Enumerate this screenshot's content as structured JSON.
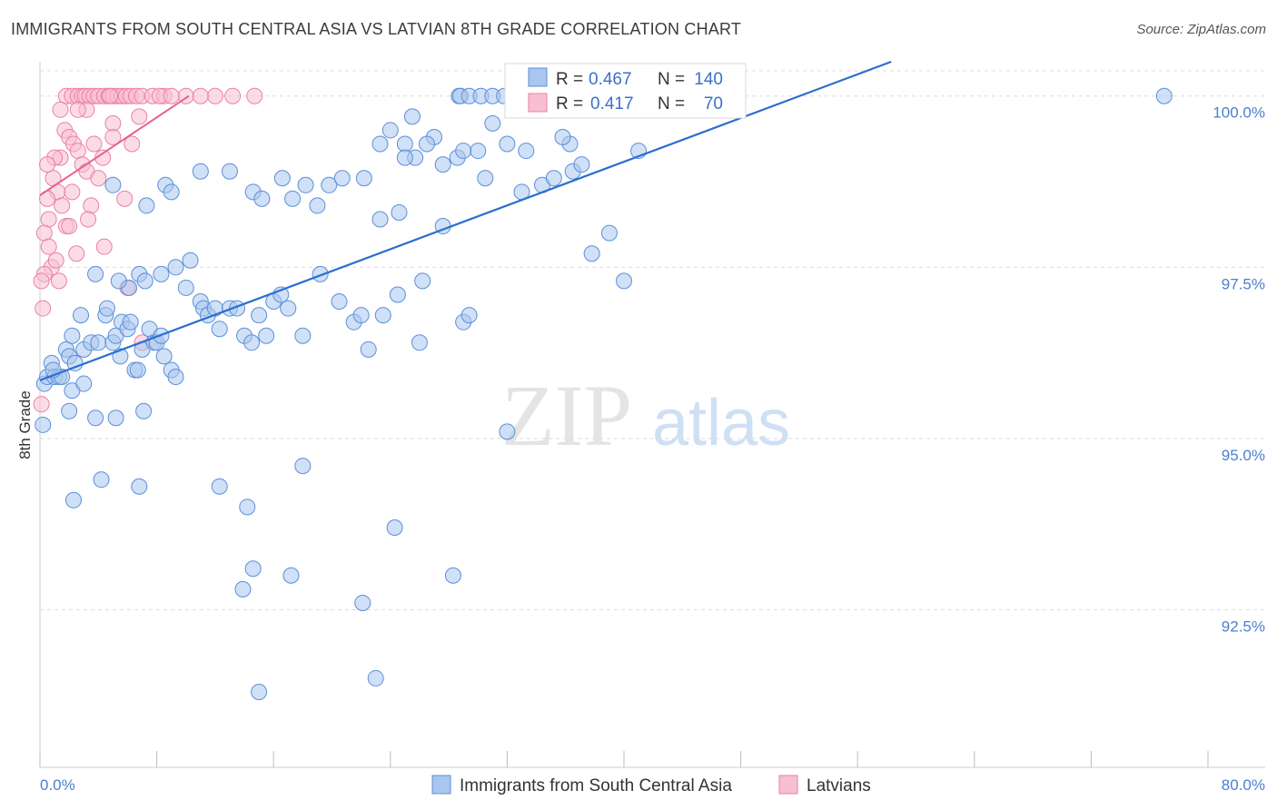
{
  "title": "IMMIGRANTS FROM SOUTH CENTRAL ASIA VS LATVIAN 8TH GRADE CORRELATION CHART",
  "source": "Source: ZipAtlas.com",
  "watermark": {
    "zip": "ZIP",
    "atlas": "atlas"
  },
  "colors": {
    "blue_fill": "#a9c6ef",
    "blue_stroke": "#5b8fd8",
    "blue_line": "#2a6fd0",
    "pink_fill": "#f7bfd1",
    "pink_stroke": "#ec7fa3",
    "pink_line": "#e8608d",
    "grid": "#dcdcdc",
    "tick_text": "#4a7fd0"
  },
  "legend": {
    "rows": [
      {
        "r_label": "R =",
        "r_value": "0.467",
        "n_label": "N =",
        "n_value": "140",
        "series": "blue"
      },
      {
        "r_label": "R =",
        "r_value": "0.417",
        "n_label": "N =",
        "n_value": "70",
        "series": "pink"
      }
    ]
  },
  "chart_data": {
    "type": "scatter",
    "title": "IMMIGRANTS FROM SOUTH CENTRAL ASIA VS LATVIAN 8TH GRADE CORRELATION CHART",
    "xlabel": "",
    "ylabel": "8th Grade",
    "xlim": [
      0,
      80
    ],
    "ylim": [
      90.2,
      100.5
    ],
    "x_tick_labels": [
      "0.0%",
      "80.0%"
    ],
    "y_ticks": [
      {
        "value": 100.0,
        "label": "100.0%"
      },
      {
        "value": 97.5,
        "label": "97.5%"
      },
      {
        "value": 95.0,
        "label": "95.0%"
      },
      {
        "value": 92.5,
        "label": "92.5%"
      }
    ],
    "series": [
      {
        "name": "Immigrants from South Central Asia",
        "color": "blue",
        "R": 0.467,
        "N": 140,
        "trend": {
          "x": [
            0,
            58.3
          ],
          "y": [
            95.85,
            100.5
          ]
        },
        "points": [
          [
            0.2,
            95.2
          ],
          [
            0.3,
            95.8
          ],
          [
            0.5,
            95.9
          ],
          [
            0.8,
            96.1
          ],
          [
            1.0,
            95.9
          ],
          [
            1.3,
            95.9
          ],
          [
            1.5,
            95.9
          ],
          [
            0.9,
            96.0
          ],
          [
            1.8,
            96.3
          ],
          [
            2.0,
            96.2
          ],
          [
            2.4,
            96.1
          ],
          [
            2.2,
            96.5
          ],
          [
            2.8,
            96.8
          ],
          [
            3.0,
            96.3
          ],
          [
            3.5,
            96.4
          ],
          [
            4.0,
            96.4
          ],
          [
            2.0,
            95.4
          ],
          [
            2.2,
            95.7
          ],
          [
            4.5,
            96.8
          ],
          [
            4.6,
            96.9
          ],
          [
            5.0,
            96.4
          ],
          [
            5.2,
            96.5
          ],
          [
            5.5,
            96.2
          ],
          [
            5.6,
            96.7
          ],
          [
            6.0,
            96.6
          ],
          [
            6.2,
            96.7
          ],
          [
            6.5,
            96.0
          ],
          [
            6.7,
            96.0
          ],
          [
            7.0,
            96.3
          ],
          [
            7.5,
            96.6
          ],
          [
            7.8,
            96.4
          ],
          [
            8.0,
            96.4
          ],
          [
            8.3,
            96.5
          ],
          [
            8.5,
            96.2
          ],
          [
            9.0,
            96.0
          ],
          [
            9.3,
            95.9
          ],
          [
            3.0,
            95.8
          ],
          [
            3.8,
            95.3
          ],
          [
            5.2,
            95.3
          ],
          [
            7.1,
            95.4
          ],
          [
            6.8,
            97.4
          ],
          [
            7.2,
            97.3
          ],
          [
            8.3,
            97.4
          ],
          [
            9.3,
            97.5
          ],
          [
            6.1,
            97.2
          ],
          [
            5.4,
            97.3
          ],
          [
            3.8,
            97.4
          ],
          [
            10.0,
            97.2
          ],
          [
            10.3,
            97.6
          ],
          [
            11.0,
            97.0
          ],
          [
            11.2,
            96.9
          ],
          [
            11.5,
            96.8
          ],
          [
            12.0,
            96.9
          ],
          [
            12.3,
            96.6
          ],
          [
            13.0,
            96.9
          ],
          [
            13.5,
            96.9
          ],
          [
            14.0,
            96.5
          ],
          [
            14.5,
            96.4
          ],
          [
            15.0,
            96.8
          ],
          [
            15.5,
            96.5
          ],
          [
            16.0,
            97.0
          ],
          [
            16.5,
            97.1
          ],
          [
            17.0,
            96.9
          ],
          [
            18.0,
            96.5
          ],
          [
            19.2,
            97.4
          ],
          [
            20.5,
            97.0
          ],
          [
            21.5,
            96.7
          ],
          [
            22.0,
            96.8
          ],
          [
            22.5,
            96.3
          ],
          [
            23.5,
            96.8
          ],
          [
            24.5,
            97.1
          ],
          [
            26.0,
            96.4
          ],
          [
            26.2,
            97.3
          ],
          [
            29.0,
            96.7
          ],
          [
            29.4,
            96.8
          ],
          [
            5.0,
            98.7
          ],
          [
            7.3,
            98.4
          ],
          [
            8.6,
            98.7
          ],
          [
            9.0,
            98.6
          ],
          [
            11.0,
            98.9
          ],
          [
            13.0,
            98.9
          ],
          [
            14.6,
            98.6
          ],
          [
            15.2,
            98.5
          ],
          [
            16.6,
            98.8
          ],
          [
            17.3,
            98.5
          ],
          [
            18.2,
            98.7
          ],
          [
            19.0,
            98.4
          ],
          [
            19.8,
            98.7
          ],
          [
            20.7,
            98.8
          ],
          [
            22.2,
            98.8
          ],
          [
            23.3,
            98.2
          ],
          [
            24.6,
            98.3
          ],
          [
            25.0,
            99.3
          ],
          [
            25.7,
            99.1
          ],
          [
            27.0,
            99.4
          ],
          [
            27.6,
            98.1
          ],
          [
            28.6,
            99.1
          ],
          [
            30.5,
            98.8
          ],
          [
            32.0,
            99.3
          ],
          [
            33.0,
            98.6
          ],
          [
            34.4,
            98.7
          ],
          [
            35.2,
            98.8
          ],
          [
            36.5,
            98.9
          ],
          [
            37.1,
            99.0
          ],
          [
            37.8,
            97.7
          ],
          [
            36.3,
            99.3
          ],
          [
            35.8,
            99.4
          ],
          [
            33.3,
            99.2
          ],
          [
            31.0,
            99.6
          ],
          [
            30.0,
            99.2
          ],
          [
            29.0,
            99.2
          ],
          [
            27.6,
            99.0
          ],
          [
            23.3,
            99.3
          ],
          [
            24.0,
            99.5
          ],
          [
            25.0,
            99.1
          ],
          [
            25.5,
            99.7
          ],
          [
            26.5,
            99.3
          ],
          [
            28.7,
            100.0
          ],
          [
            28.8,
            100.0
          ],
          [
            29.4,
            100.0
          ],
          [
            30.2,
            100.0
          ],
          [
            31.0,
            100.0
          ],
          [
            31.8,
            100.0
          ],
          [
            32.5,
            100.0
          ],
          [
            33.7,
            100.0
          ],
          [
            35.5,
            100.0
          ],
          [
            36.2,
            100.0
          ],
          [
            37.5,
            100.0
          ],
          [
            37.8,
            100.0
          ],
          [
            39.0,
            100.0
          ],
          [
            40.5,
            100.0
          ],
          [
            41.5,
            100.0
          ],
          [
            42.0,
            100.0
          ],
          [
            41.0,
            99.2
          ],
          [
            40.0,
            97.3
          ],
          [
            39.0,
            98.0
          ],
          [
            4.2,
            94.4
          ],
          [
            2.3,
            94.1
          ],
          [
            6.8,
            94.3
          ],
          [
            12.3,
            94.3
          ],
          [
            14.2,
            94.0
          ],
          [
            14.6,
            93.1
          ],
          [
            13.9,
            92.8
          ],
          [
            17.2,
            93.0
          ],
          [
            18.0,
            94.6
          ],
          [
            22.1,
            92.6
          ],
          [
            24.3,
            93.7
          ],
          [
            28.3,
            93.0
          ],
          [
            32.0,
            95.1
          ],
          [
            15.0,
            91.3
          ],
          [
            23.0,
            91.5
          ],
          [
            77.0,
            100.0
          ]
        ]
      },
      {
        "name": "Latvians",
        "color": "pink",
        "R": 0.417,
        "N": 70,
        "trend": {
          "x": [
            0,
            10.2
          ],
          "y": [
            98.55,
            100.0
          ]
        },
        "points": [
          [
            1.8,
            100.0
          ],
          [
            2.2,
            100.0
          ],
          [
            2.6,
            100.0
          ],
          [
            2.9,
            100.0
          ],
          [
            3.1,
            100.0
          ],
          [
            3.4,
            100.0
          ],
          [
            3.7,
            100.0
          ],
          [
            4.0,
            100.0
          ],
          [
            4.4,
            100.0
          ],
          [
            4.7,
            100.0
          ],
          [
            5.0,
            100.0
          ],
          [
            5.3,
            100.0
          ],
          [
            5.6,
            100.0
          ],
          [
            5.9,
            100.0
          ],
          [
            6.2,
            100.0
          ],
          [
            6.6,
            100.0
          ],
          [
            7.0,
            100.0
          ],
          [
            7.7,
            100.0
          ],
          [
            8.5,
            100.0
          ],
          [
            10.0,
            100.0
          ],
          [
            12.0,
            100.0
          ],
          [
            13.2,
            100.0
          ],
          [
            14.7,
            100.0
          ],
          [
            3.2,
            99.8
          ],
          [
            5.0,
            99.6
          ],
          [
            6.8,
            99.7
          ],
          [
            1.4,
            99.8
          ],
          [
            1.7,
            99.5
          ],
          [
            2.0,
            99.4
          ],
          [
            2.3,
            99.3
          ],
          [
            2.6,
            99.2
          ],
          [
            2.9,
            99.0
          ],
          [
            3.2,
            98.9
          ],
          [
            1.4,
            99.1
          ],
          [
            0.9,
            98.8
          ],
          [
            1.2,
            98.6
          ],
          [
            1.5,
            98.4
          ],
          [
            1.8,
            98.1
          ],
          [
            0.5,
            98.5
          ],
          [
            0.6,
            98.2
          ],
          [
            0.3,
            98.0
          ],
          [
            0.6,
            97.8
          ],
          [
            0.8,
            97.5
          ],
          [
            1.1,
            97.6
          ],
          [
            0.3,
            97.4
          ],
          [
            0.1,
            97.3
          ],
          [
            0.2,
            96.9
          ],
          [
            1.3,
            97.3
          ],
          [
            3.5,
            98.4
          ],
          [
            4.3,
            99.1
          ],
          [
            4.0,
            98.8
          ],
          [
            5.0,
            99.4
          ],
          [
            2.0,
            98.1
          ],
          [
            2.5,
            97.7
          ],
          [
            3.3,
            98.2
          ],
          [
            4.4,
            97.8
          ],
          [
            6.0,
            97.2
          ],
          [
            7.0,
            96.4
          ],
          [
            0.1,
            95.5
          ],
          [
            6.3,
            99.3
          ],
          [
            8.2,
            100.0
          ],
          [
            11.0,
            100.0
          ],
          [
            5.8,
            98.5
          ],
          [
            3.7,
            99.3
          ],
          [
            1.0,
            99.1
          ],
          [
            2.6,
            99.8
          ],
          [
            0.5,
            99.0
          ],
          [
            4.8,
            100.0
          ],
          [
            9.0,
            100.0
          ],
          [
            2.2,
            98.6
          ]
        ]
      }
    ]
  },
  "bottom_legend": {
    "items": [
      {
        "label": "Immigrants from South Central Asia",
        "series": "blue"
      },
      {
        "label": "Latvians",
        "series": "pink"
      }
    ]
  }
}
